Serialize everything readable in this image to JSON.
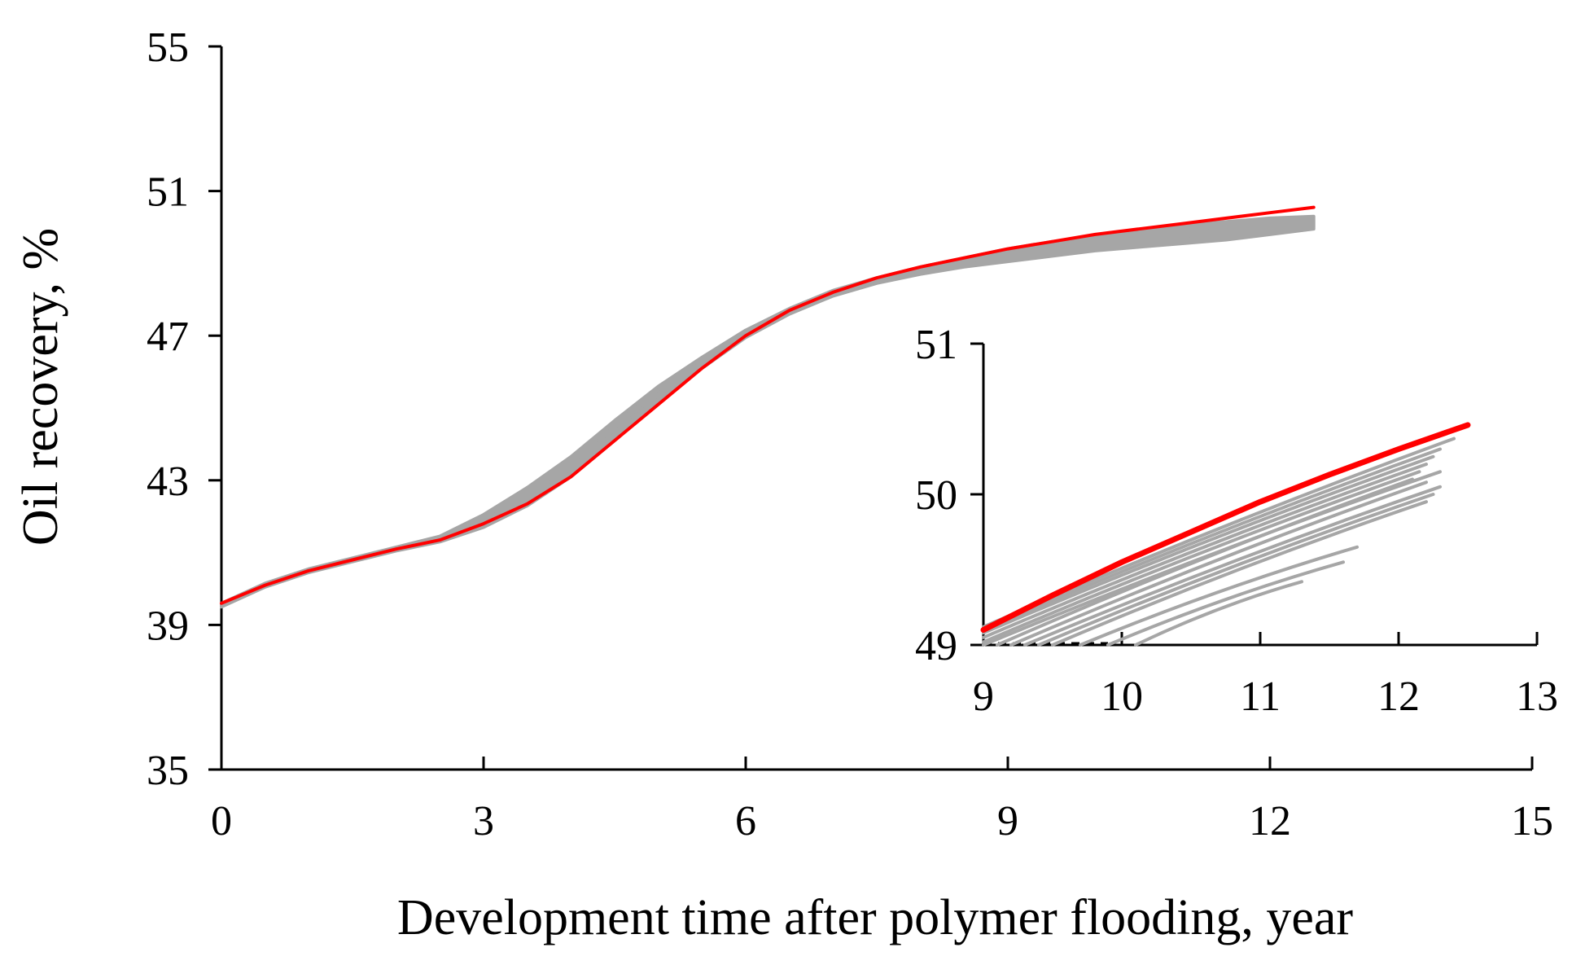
{
  "chart_data": [
    {
      "id": "main",
      "type": "line",
      "title": "",
      "xlabel": "Development time after polymer flooding, year",
      "ylabel": "Oil recovery, %",
      "xlim": [
        0,
        15
      ],
      "ylim": [
        35,
        55
      ],
      "xticks": [
        0,
        3,
        6,
        9,
        12,
        15
      ],
      "yticks": [
        35,
        39,
        43,
        47,
        51,
        55
      ],
      "xtick_labels": [
        "0",
        "3",
        "6",
        "9",
        "12",
        "15"
      ],
      "ytick_labels": [
        "35",
        "39",
        "43",
        "47",
        "51",
        "55"
      ],
      "colors": {
        "highlight": "#ff0000",
        "ensemble": "#a6a6a6",
        "axis": "#000000"
      },
      "series": [
        {
          "name": "highlight",
          "color": "#ff0000",
          "x": [
            0,
            0.5,
            1,
            1.5,
            2,
            2.5,
            3,
            3.5,
            4,
            4.5,
            5,
            5.5,
            6,
            6.5,
            7,
            7.5,
            8,
            8.5,
            9,
            9.5,
            10,
            10.5,
            11,
            11.5,
            12,
            12.5
          ],
          "y": [
            39.6,
            40.1,
            40.5,
            40.8,
            41.1,
            41.35,
            41.8,
            42.35,
            43.1,
            44.1,
            45.1,
            46.1,
            47.0,
            47.7,
            48.2,
            48.6,
            48.9,
            49.15,
            49.4,
            49.6,
            49.8,
            49.95,
            50.1,
            50.25,
            50.4,
            50.55
          ]
        }
      ],
      "ensemble": {
        "name": "simulations",
        "color": "#a6a6a6",
        "x": [
          0,
          0.5,
          1,
          1.5,
          2,
          2.5,
          3,
          3.5,
          4,
          4.5,
          5,
          5.5,
          6,
          6.5,
          7,
          7.5,
          8,
          8.5,
          9,
          9.5,
          10,
          10.5,
          11,
          11.5,
          12,
          12.5
        ],
        "upper": [
          39.6,
          40.15,
          40.55,
          40.85,
          41.15,
          41.45,
          42.05,
          42.8,
          43.65,
          44.65,
          45.6,
          46.4,
          47.15,
          47.75,
          48.25,
          48.6,
          48.9,
          49.15,
          49.4,
          49.6,
          49.75,
          49.9,
          50.05,
          50.15,
          50.25,
          50.3
        ],
        "lower": [
          39.5,
          40.05,
          40.45,
          40.75,
          41.05,
          41.3,
          41.7,
          42.3,
          43.1,
          44.1,
          45.2,
          46.1,
          46.95,
          47.6,
          48.1,
          48.45,
          48.7,
          48.9,
          49.05,
          49.2,
          49.35,
          49.45,
          49.55,
          49.65,
          49.8,
          49.95
        ],
        "end_x_range": [
          11.6,
          12.3
        ]
      }
    },
    {
      "id": "inset",
      "type": "line",
      "title": "",
      "xlabel": "",
      "ylabel": "",
      "xlim": [
        9,
        13
      ],
      "ylim": [
        49,
        51
      ],
      "xticks": [
        9,
        10,
        11,
        12,
        13
      ],
      "yticks": [
        49,
        50,
        51
      ],
      "xtick_labels": [
        "9",
        "10",
        "11",
        "12",
        "13"
      ],
      "ytick_labels": [
        "49",
        "50",
        "51"
      ],
      "series": [
        {
          "name": "highlight",
          "color": "#ff0000",
          "x": [
            9,
            9.5,
            10,
            10.5,
            11,
            11.5,
            12,
            12.5
          ],
          "y": [
            49.1,
            49.33,
            49.55,
            49.75,
            49.95,
            50.13,
            50.3,
            50.46
          ]
        }
      ],
      "ensemble_lines": [
        {
          "x": [
            9,
            12.4
          ],
          "y": [
            49.12,
            50.37
          ]
        },
        {
          "x": [
            9,
            12.3
          ],
          "y": [
            49.1,
            50.3
          ]
        },
        {
          "x": [
            9,
            12.25
          ],
          "y": [
            49.08,
            50.25
          ]
        },
        {
          "x": [
            9,
            12.2
          ],
          "y": [
            49.05,
            50.2
          ]
        },
        {
          "x": [
            9,
            12.15
          ],
          "y": [
            49.02,
            50.15
          ]
        },
        {
          "x": [
            9,
            12.3
          ],
          "y": [
            49.0,
            50.15
          ]
        },
        {
          "x": [
            9.1,
            12.1
          ],
          "y": [
            49.0,
            50.1
          ]
        },
        {
          "x": [
            9.2,
            12.2
          ],
          "y": [
            49.0,
            50.08
          ]
        },
        {
          "x": [
            9.3,
            12.3
          ],
          "y": [
            49.0,
            50.05
          ]
        },
        {
          "x": [
            9.4,
            12.25
          ],
          "y": [
            49.0,
            50.0
          ]
        },
        {
          "x": [
            9.5,
            12.2
          ],
          "y": [
            49.0,
            49.95
          ]
        },
        {
          "x": [
            9.7,
            11.7
          ],
          "y": [
            49.0,
            49.65
          ]
        },
        {
          "x": [
            9.9,
            11.6
          ],
          "y": [
            49.0,
            49.55
          ]
        },
        {
          "x": [
            10.1,
            11.3
          ],
          "y": [
            49.0,
            49.42
          ]
        }
      ],
      "baseline_dashed": {
        "x": [
          9,
          9.9
        ],
        "y": [
          49.0,
          49.0
        ]
      }
    }
  ]
}
